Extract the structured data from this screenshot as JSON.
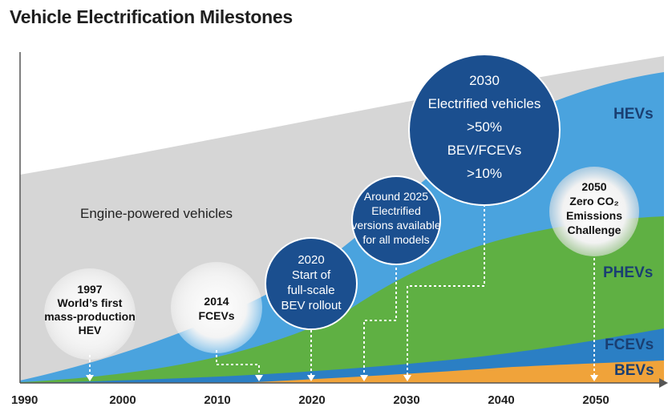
{
  "chart_data": {
    "type": "area",
    "title": "Vehicle Electrification Milestones",
    "xlabel": "",
    "ylabel": "",
    "x_ticks": [
      "1990",
      "2000",
      "2010",
      "2020",
      "2030",
      "2040",
      "2050"
    ],
    "series": [
      {
        "name": "HEVs",
        "color": "#4aa3de"
      },
      {
        "name": "PHEVs",
        "color": "#5fb043"
      },
      {
        "name": "FCEVs",
        "color": "#2b7fc4"
      },
      {
        "name": "BEVs",
        "color": "#f0a33a"
      }
    ],
    "region_label": "Engine-powered vehicles",
    "milestones": [
      {
        "year": 1997,
        "lines": [
          "1997",
          "World’s first",
          "mass-production",
          "HEV"
        ]
      },
      {
        "year": 2014,
        "lines": [
          "2014",
          "FCEVs"
        ]
      },
      {
        "year": 2020,
        "lines": [
          "2020",
          "Start of",
          "full-scale",
          "BEV rollout"
        ]
      },
      {
        "year": 2025,
        "lines": [
          "Around 2025",
          "Electrified",
          "versions available",
          "for all models"
        ]
      },
      {
        "year": 2030,
        "lines": [
          "2030",
          "Electrified vehicles",
          ">50%",
          "BEV/FCEVs",
          ">10%"
        ]
      },
      {
        "year": 2050,
        "lines": [
          "2050",
          "Zero CO₂",
          "Emissions",
          "Challenge"
        ]
      }
    ]
  },
  "colors": {
    "engine_area": "#d6d6d6",
    "milestone_circle": "#1b4f8f",
    "bubble_light": "#ececec",
    "axis": "#555555"
  }
}
